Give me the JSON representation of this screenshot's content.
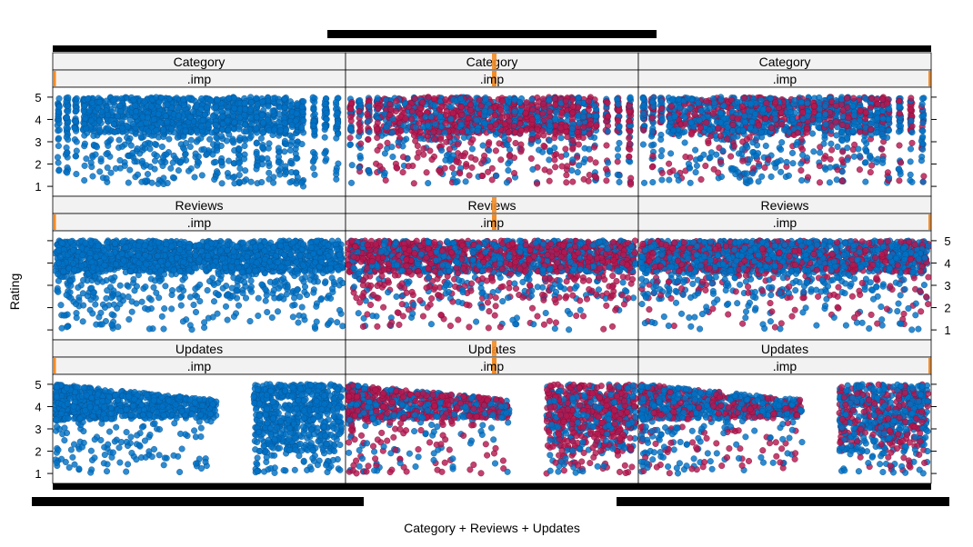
{
  "chart_data": {
    "type": "scatter",
    "xlabel": "Category + Reviews + Updates",
    "ylabel": "Rating",
    "ylim": [
      0.8,
      5.2
    ],
    "yticks": [
      1,
      2,
      3,
      4,
      5
    ],
    "grid": false,
    "columns": [
      ".imp",
      ".imp",
      ".imp"
    ],
    "rows": [
      {
        "strip": "Category",
        "y_axis_side": "left",
        "pattern": "category"
      },
      {
        "strip": "Reviews",
        "y_axis_side": "right",
        "pattern": "reviews"
      },
      {
        "strip": "Updates",
        "y_axis_side": "left",
        "pattern": "updates"
      }
    ],
    "panel_imputed_share": [
      0,
      0.55,
      0.35
    ],
    "colors": {
      "observed": "#0072C6",
      "imputed": "#B5174F",
      "strip_bg": "#F2F2F2",
      "strip_marker": "#F28C28",
      "axis_bar": "#000000"
    },
    "category_columns": [
      0.01,
      0.04,
      0.07,
      0.1,
      0.12,
      0.14,
      0.17,
      0.19,
      0.22,
      0.24,
      0.27,
      0.29,
      0.31,
      0.33,
      0.35,
      0.37,
      0.39,
      0.4,
      0.42,
      0.44,
      0.46,
      0.48,
      0.5,
      0.52,
      0.54,
      0.56,
      0.58,
      0.6,
      0.62,
      0.64,
      0.66,
      0.68,
      0.7,
      0.72,
      0.74,
      0.76,
      0.78,
      0.8,
      0.82,
      0.84,
      0.86,
      0.9,
      0.94,
      0.98
    ],
    "updates_cluster_ranges": [
      [
        0.0,
        0.56
      ],
      [
        0.69,
        1.0
      ]
    ]
  }
}
